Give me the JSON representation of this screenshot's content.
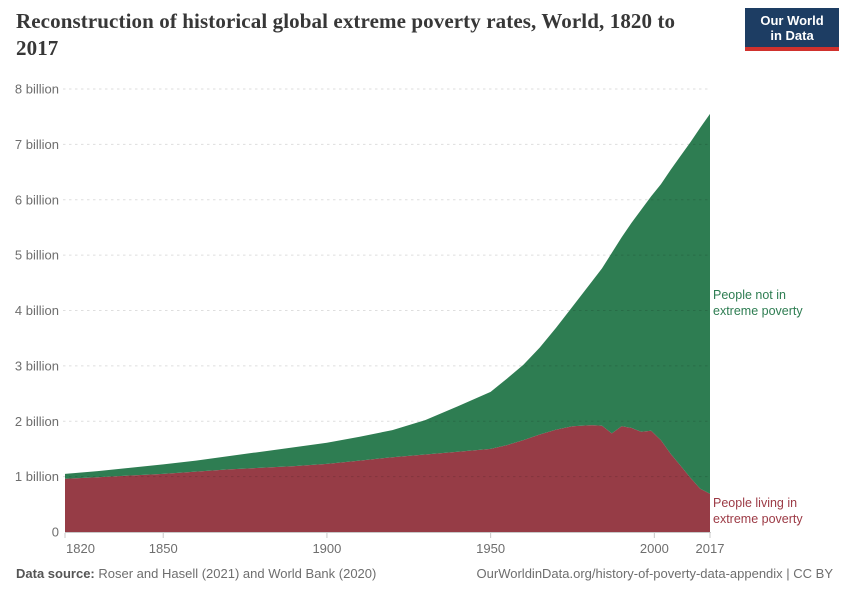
{
  "header": {
    "title": "Reconstruction of historical global extreme poverty rates, World, 1820 to 2017",
    "logo": {
      "line1": "Our World",
      "line2": "in Data",
      "bg_color": "#1d3d63",
      "accent_color": "#d0312d"
    }
  },
  "chart_data": {
    "type": "area",
    "stacked": true,
    "title": "Reconstruction of historical global extreme poverty rates, World, 1820 to 2017",
    "units": "billions of people",
    "xlim": [
      1820,
      2017
    ],
    "ylim": [
      0,
      8
    ],
    "grid": "horizontal-dashed",
    "legend_position": "right-edge-annotations",
    "x": [
      1820,
      1830,
      1840,
      1850,
      1860,
      1870,
      1880,
      1890,
      1900,
      1910,
      1920,
      1930,
      1940,
      1950,
      1955,
      1960,
      1965,
      1970,
      1975,
      1981,
      1984,
      1987,
      1990,
      1993,
      1996,
      1999,
      2002,
      2005,
      2008,
      2011,
      2014,
      2017
    ],
    "series": [
      {
        "name": "People living in extreme poverty",
        "color": "#963c46",
        "values": [
          0.96,
          0.99,
          1.02,
          1.05,
          1.09,
          1.13,
          1.16,
          1.19,
          1.23,
          1.29,
          1.35,
          1.4,
          1.45,
          1.5,
          1.57,
          1.66,
          1.76,
          1.85,
          1.91,
          1.93,
          1.92,
          1.78,
          1.91,
          1.88,
          1.81,
          1.83,
          1.66,
          1.41,
          1.2,
          0.98,
          0.78,
          0.69
        ]
      },
      {
        "name": "People not in extreme poverty",
        "color": "#2e7d52",
        "values": [
          0.09,
          0.11,
          0.14,
          0.17,
          0.2,
          0.24,
          0.29,
          0.34,
          0.38,
          0.43,
          0.49,
          0.62,
          0.82,
          1.03,
          1.2,
          1.36,
          1.57,
          1.84,
          2.16,
          2.6,
          2.84,
          3.26,
          3.41,
          3.7,
          4.01,
          4.23,
          4.62,
          5.13,
          5.59,
          6.06,
          6.52,
          6.86
        ]
      }
    ],
    "world_population_total": [
      1.05,
      1.1,
      1.16,
      1.22,
      1.29,
      1.37,
      1.45,
      1.53,
      1.61,
      1.72,
      1.84,
      2.02,
      2.27,
      2.53,
      2.77,
      3.02,
      3.33,
      3.69,
      4.07,
      4.53,
      4.76,
      5.04,
      5.32,
      5.58,
      5.82,
      6.06,
      6.28,
      6.54,
      6.79,
      7.04,
      7.3,
      7.55
    ],
    "y_ticks": [
      {
        "value": 0,
        "label": "0"
      },
      {
        "value": 1,
        "label": "1 billion"
      },
      {
        "value": 2,
        "label": "2 billion"
      },
      {
        "value": 3,
        "label": "3 billion"
      },
      {
        "value": 4,
        "label": "4 billion"
      },
      {
        "value": 5,
        "label": "5 billion"
      },
      {
        "value": 6,
        "label": "6 billion"
      },
      {
        "value": 7,
        "label": "7 billion"
      },
      {
        "value": 8,
        "label": "8 billion"
      }
    ],
    "x_ticks": [
      {
        "value": 1820,
        "label": "1820"
      },
      {
        "value": 1850,
        "label": "1850"
      },
      {
        "value": 1900,
        "label": "1900"
      },
      {
        "value": 1950,
        "label": "1950"
      },
      {
        "value": 2000,
        "label": "2000"
      },
      {
        "value": 2017,
        "label": "2017"
      }
    ],
    "axis_text_color": "#6e6e6e",
    "axis_line_color": "#c8c8c8"
  },
  "footer": {
    "source_label": "Data source:",
    "source_text": "Roser and Hasell (2021) and World Bank (2020)",
    "credit": "OurWorldinData.org/history-of-poverty-data-appendix | CC BY"
  }
}
